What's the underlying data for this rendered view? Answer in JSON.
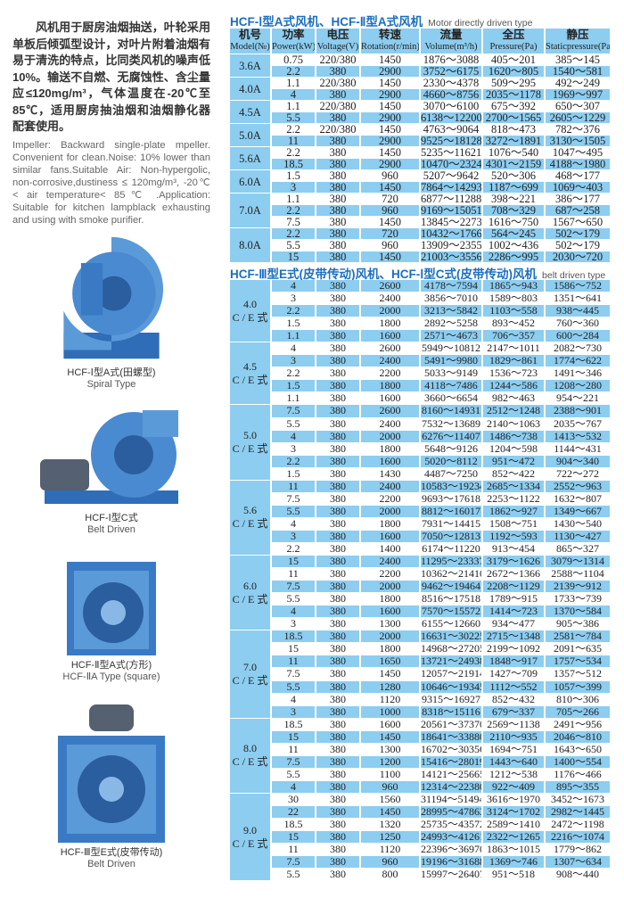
{
  "intro": {
    "cn": "风机用于厨房油烟抽送，叶轮采用单板后倾弧型设计，对叶片附着油烟有易于清洗的特点，比同类风机的噪声低10%。输送不自燃、无腐蚀性、含尘量应≤120mg/m³，气体温度在-20℃至85℃，适用厨房抽油烟和油烟静化器配套使用。",
    "en": "Impeller: Backward single-plate mpeller. Convenient for clean.Noise: 10% lower than similar fans.Suitable Air: Non-hypergolic, non-corrosive,dustiness ≤ 120mg/m³, -20℃ < air temperature< 85℃ .Application: Suitable for kitchen lampblack exhausting and using with smoke purifier."
  },
  "figures": [
    {
      "cn": "HCF-Ⅰ型A式(田螺型)",
      "en": "Spiral Type"
    },
    {
      "cn": "HCF-Ⅰ型C式",
      "en": "Belt Driven"
    },
    {
      "cn": "HCF-Ⅱ型A式(方形)",
      "en": "HCF-ⅡA Type (square)"
    },
    {
      "cn": "HCF-Ⅲ型E式(皮带传动)",
      "en": "Belt Driven"
    }
  ],
  "colors": {
    "row_blue": "#8ccdf0",
    "title_blue": "#1a6fc0"
  },
  "headers": [
    {
      "cn": "机号",
      "en": "Model(№)"
    },
    {
      "cn": "功率",
      "en": "Power(kW)"
    },
    {
      "cn": "电压",
      "en": "Voltage(V)"
    },
    {
      "cn": "转速",
      "en": "Rotation(r/min)"
    },
    {
      "cn": "流量",
      "en": "Volume(m³/h)"
    },
    {
      "cn": "全压",
      "en": "Pressure(Pa)"
    },
    {
      "cn": "静压",
      "en": "Staticpressure(Pa)"
    }
  ],
  "section1": {
    "title": "HCF-Ⅰ型A式风机、HCF-Ⅱ型A式风机",
    "subtitle": "Motor directly driven type",
    "groups": [
      {
        "model": "3.6A",
        "rows": [
          [
            "0.75",
            "220/380",
            "1450",
            "1876～3088",
            "405～201",
            "385～145"
          ],
          [
            "2.2",
            "380",
            "2900",
            "3752～6175",
            "1620～805",
            "1540～581"
          ]
        ]
      },
      {
        "model": "4.0A",
        "rows": [
          [
            "1.1",
            "220/380",
            "1450",
            "2330～4378",
            "509～295",
            "492～249"
          ],
          [
            "4",
            "380",
            "2900",
            "4660～8756",
            "2035～1178",
            "1969～997"
          ]
        ]
      },
      {
        "model": "4.5A",
        "rows": [
          [
            "1.1",
            "220/380",
            "1450",
            "3070～6100",
            "675～392",
            "650～307"
          ],
          [
            "5.5",
            "380",
            "2900",
            "6138～12200",
            "2700～1565",
            "2605～1229"
          ]
        ]
      },
      {
        "model": "5.0A",
        "rows": [
          [
            "2.2",
            "220/380",
            "1450",
            "4763～9064",
            "818～473",
            "782～376"
          ],
          [
            "11",
            "380",
            "2900",
            "9525～18128",
            "3272～1891",
            "3130～1505"
          ]
        ]
      },
      {
        "model": "5.6A",
        "rows": [
          [
            "2.2",
            "380",
            "1450",
            "5235～11621",
            "1076～540",
            "1047～495"
          ],
          [
            "18.5",
            "380",
            "2900",
            "10470～23241",
            "4301～2159",
            "4188～1980"
          ]
        ]
      },
      {
        "model": "6.0A",
        "rows": [
          [
            "1.5",
            "380",
            "960",
            "5207～9642",
            "520～306",
            "468～177"
          ],
          [
            "3",
            "380",
            "1450",
            "7864～14293",
            "1187～699",
            "1069～403"
          ]
        ]
      },
      {
        "model": "7.0A",
        "rows": [
          [
            "1.1",
            "380",
            "720",
            "6877～11288",
            "398～221",
            "386～177"
          ],
          [
            "2.2",
            "380",
            "960",
            "9169～15051",
            "708～329",
            "687～258"
          ],
          [
            "7.5",
            "380",
            "1450",
            "13845～22734",
            "1616～750",
            "1567～650"
          ]
        ]
      },
      {
        "model": "8.0A",
        "rows": [
          [
            "2.2",
            "380",
            "720",
            "10432～17665",
            "564～245",
            "502～179"
          ],
          [
            "5.5",
            "380",
            "960",
            "13909～23552",
            "1002～436",
            "502～179"
          ],
          [
            "15",
            "380",
            "1450",
            "21003～35564",
            "2286～995",
            "2030～720"
          ]
        ]
      }
    ]
  },
  "section2": {
    "title": "HCF-Ⅲ型E式(皮带传动)风机、HCF-Ⅰ型C式(皮带传动)风机",
    "subtitle": "belt driven type",
    "model_suffix": "C / E 式",
    "groups": [
      {
        "model": "4.0",
        "rows": [
          [
            "4",
            "380",
            "2600",
            "4178～7594",
            "1865～943",
            "1586～752"
          ],
          [
            "3",
            "380",
            "2400",
            "3856～7010",
            "1589～803",
            "1351～641"
          ],
          [
            "2.2",
            "380",
            "2000",
            "3213～5842",
            "1103～558",
            "938～445"
          ],
          [
            "1.5",
            "380",
            "1800",
            "2892～5258",
            "893～452",
            "760～360"
          ],
          [
            "1.1",
            "380",
            "1600",
            "2571～4673",
            "706～357",
            "600～284"
          ]
        ]
      },
      {
        "model": "4.5",
        "rows": [
          [
            "4",
            "380",
            "2600",
            "5949～10812",
            "2147～1011",
            "2082～730"
          ],
          [
            "3",
            "380",
            "2400",
            "5491～9980",
            "1829～861",
            "1774～622"
          ],
          [
            "2.2",
            "380",
            "2200",
            "5033～9149",
            "1536～723",
            "1491～346"
          ],
          [
            "1.5",
            "380",
            "1800",
            "4118～7486",
            "1244～586",
            "1208～280"
          ],
          [
            "1.1",
            "380",
            "1600",
            "3660～6654",
            "982～463",
            "954～221"
          ]
        ]
      },
      {
        "model": "5.0",
        "rows": [
          [
            "7.5",
            "380",
            "2600",
            "8160～14931",
            "2512～1248",
            "2388～901"
          ],
          [
            "5.5",
            "380",
            "2400",
            "7532～13689",
            "2140～1063",
            "2035～767"
          ],
          [
            "4",
            "380",
            "2000",
            "6276～11407",
            "1486～738",
            "1413～532"
          ],
          [
            "3",
            "380",
            "1800",
            "5648～9126",
            "1204～598",
            "1144～431"
          ],
          [
            "2.2",
            "380",
            "1600",
            "5020～8112",
            "951～472",
            "904～340"
          ],
          [
            "1.5",
            "380",
            "1430",
            "4487～7250",
            "852～422",
            "722～272"
          ]
        ]
      },
      {
        "model": "5.6",
        "rows": [
          [
            "11",
            "380",
            "2400",
            "10583～19234",
            "2685～1334",
            "2552～963"
          ],
          [
            "7.5",
            "380",
            "2200",
            "9693～17618",
            "2253～1122",
            "1632～807"
          ],
          [
            "5.5",
            "380",
            "2000",
            "8812～16017",
            "1862～927",
            "1349～667"
          ],
          [
            "4",
            "380",
            "1800",
            "7931～14415",
            "1508～751",
            "1430～540"
          ],
          [
            "3",
            "380",
            "1600",
            "7050～12813",
            "1192～593",
            "1130～427"
          ],
          [
            "2.2",
            "380",
            "1400",
            "6174～11220",
            "913～454",
            "865～327"
          ]
        ]
      },
      {
        "model": "6.0",
        "rows": [
          [
            "15",
            "380",
            "2400",
            "11295～23337",
            "3179～1626",
            "3079～1314"
          ],
          [
            "11",
            "380",
            "2200",
            "10362～21410",
            "2672～1366",
            "2588～1104"
          ],
          [
            "7.5",
            "380",
            "2000",
            "9462～19464",
            "2208～1129",
            "2139～912"
          ],
          [
            "5.5",
            "380",
            "1800",
            "8516～17518",
            "1789～915",
            "1733～739"
          ],
          [
            "4",
            "380",
            "1600",
            "7570～15572",
            "1414～723",
            "1370～584"
          ],
          [
            "3",
            "380",
            "1300",
            "6155～12660",
            "934～477",
            "905～386"
          ]
        ]
      },
      {
        "model": "7.0",
        "rows": [
          [
            "18.5",
            "380",
            "2000",
            "16631～30225",
            "2715～1348",
            "2581～784"
          ],
          [
            "15",
            "380",
            "1800",
            "14968～27205",
            "2199～1092",
            "2091～635"
          ],
          [
            "11",
            "380",
            "1650",
            "13721～24938",
            "1848～917",
            "1757～534"
          ],
          [
            "7.5",
            "380",
            "1450",
            "12057～21914",
            "1427～709",
            "1357～512"
          ],
          [
            "5.5",
            "380",
            "1280",
            "10646～19345",
            "1112～552",
            "1057～399"
          ],
          [
            "4",
            "380",
            "1120",
            "9315～16927",
            "852～432",
            "810～306"
          ],
          [
            "3",
            "380",
            "1000",
            "8318～15116",
            "679～337",
            "705～266"
          ]
        ]
      },
      {
        "model": "8.0",
        "rows": [
          [
            "18.5",
            "380",
            "1600",
            "20561～37370",
            "2569～1138",
            "2491～956"
          ],
          [
            "15",
            "380",
            "1450",
            "18641～33880",
            "2110～935",
            "2046～810"
          ],
          [
            "11",
            "380",
            "1300",
            "16702～30356",
            "1694～751",
            "1643～650"
          ],
          [
            "7.5",
            "380",
            "1200",
            "15416～28019",
            "1443～640",
            "1400～554"
          ],
          [
            "5.5",
            "380",
            "1100",
            "14121～25665",
            "1212～538",
            "1176～466"
          ],
          [
            "4",
            "380",
            "960",
            "12314～22380",
            "922～409",
            "895～355"
          ]
        ]
      },
      {
        "model": "9.0",
        "rows": [
          [
            "30",
            "380",
            "1560",
            "31194～51494",
            "3616～1970",
            "3452～1673"
          ],
          [
            "22",
            "380",
            "1450",
            "28995～47863",
            "3124～1702",
            "2982～1445"
          ],
          [
            "18.5",
            "380",
            "1320",
            "25735～43572",
            "2589～1410",
            "2472～1198"
          ],
          [
            "15",
            "380",
            "1250",
            "24993～41261",
            "2322～1265",
            "2216～1074"
          ],
          [
            "11",
            "380",
            "1120",
            "22396～36970",
            "1863～1015",
            "1779～862"
          ],
          [
            "7.5",
            "380",
            "960",
            "19196～31688",
            "1369～746",
            "1307～634"
          ],
          [
            "5.5",
            "380",
            "800",
            "15997～26407",
            "951～518",
            "908～440"
          ]
        ]
      }
    ]
  }
}
